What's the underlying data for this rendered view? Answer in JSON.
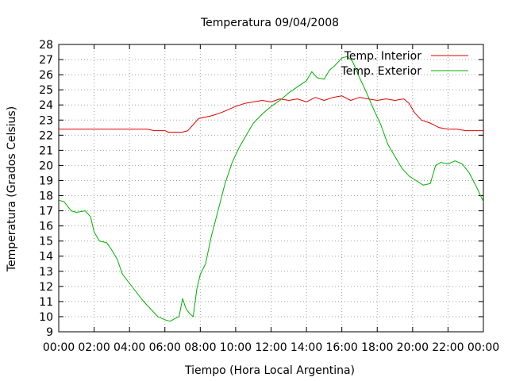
{
  "chart_data": {
    "type": "line",
    "title": "Temperatura 09/04/2008",
    "xlabel": "Tiempo (Hora Local Argentina)",
    "ylabel": "Temperatura (Grados Celsius)",
    "xlim": [
      0,
      24
    ],
    "ylim": [
      9,
      28
    ],
    "grid": true,
    "legend_position": "top-right",
    "x_tick_labels": [
      "00:00",
      "02:00",
      "04:00",
      "06:00",
      "08:00",
      "10:00",
      "12:00",
      "14:00",
      "16:00",
      "18:00",
      "20:00",
      "22:00",
      "00:00"
    ],
    "y_tick_labels": [
      "9",
      "10",
      "11",
      "12",
      "13",
      "14",
      "15",
      "16",
      "17",
      "18",
      "19",
      "20",
      "21",
      "22",
      "23",
      "24",
      "25",
      "26",
      "27",
      "28"
    ],
    "series": [
      {
        "name": "Temp. Interior",
        "color": "#e00000",
        "points": [
          [
            0,
            22.4
          ],
          [
            1,
            22.4
          ],
          [
            2,
            22.4
          ],
          [
            3,
            22.4
          ],
          [
            4,
            22.4
          ],
          [
            5,
            22.4
          ],
          [
            5.4,
            22.3
          ],
          [
            6,
            22.3
          ],
          [
            6.2,
            22.2
          ],
          [
            7,
            22.2
          ],
          [
            7.3,
            22.3
          ],
          [
            7.6,
            22.7
          ],
          [
            7.9,
            23.1
          ],
          [
            8.3,
            23.2
          ],
          [
            8.7,
            23.3
          ],
          [
            9.2,
            23.5
          ],
          [
            9.6,
            23.7
          ],
          [
            10,
            23.9
          ],
          [
            10.5,
            24.1
          ],
          [
            11,
            24.2
          ],
          [
            11.5,
            24.3
          ],
          [
            12,
            24.2
          ],
          [
            12.5,
            24.4
          ],
          [
            13,
            24.3
          ],
          [
            13.5,
            24.4
          ],
          [
            14,
            24.2
          ],
          [
            14.5,
            24.5
          ],
          [
            15,
            24.3
          ],
          [
            15.5,
            24.5
          ],
          [
            16,
            24.6
          ],
          [
            16.5,
            24.3
          ],
          [
            17,
            24.5
          ],
          [
            17.5,
            24.4
          ],
          [
            18,
            24.3
          ],
          [
            18.5,
            24.4
          ],
          [
            19,
            24.3
          ],
          [
            19.5,
            24.4
          ],
          [
            19.8,
            24.1
          ],
          [
            20.1,
            23.5
          ],
          [
            20.5,
            23.0
          ],
          [
            21,
            22.8
          ],
          [
            21.5,
            22.5
          ],
          [
            22,
            22.4
          ],
          [
            22.5,
            22.4
          ],
          [
            23,
            22.3
          ],
          [
            23.5,
            22.3
          ],
          [
            24,
            22.3
          ]
        ]
      },
      {
        "name": "Temp. Exterior",
        "color": "#00b000",
        "points": [
          [
            0,
            17.7
          ],
          [
            0.3,
            17.6
          ],
          [
            0.7,
            17.0
          ],
          [
            1.0,
            16.9
          ],
          [
            1.5,
            17.0
          ],
          [
            1.8,
            16.6
          ],
          [
            2.0,
            15.6
          ],
          [
            2.3,
            15.0
          ],
          [
            2.7,
            14.9
          ],
          [
            3.0,
            14.4
          ],
          [
            3.3,
            13.8
          ],
          [
            3.6,
            12.8
          ],
          [
            4.0,
            12.2
          ],
          [
            4.4,
            11.6
          ],
          [
            4.8,
            11.0
          ],
          [
            5.2,
            10.5
          ],
          [
            5.6,
            10.0
          ],
          [
            6.0,
            9.8
          ],
          [
            6.3,
            9.7
          ],
          [
            6.6,
            9.9
          ],
          [
            6.8,
            10.0
          ],
          [
            7.0,
            11.2
          ],
          [
            7.2,
            10.5
          ],
          [
            7.4,
            10.2
          ],
          [
            7.6,
            10.0
          ],
          [
            7.8,
            11.8
          ],
          [
            8.0,
            12.8
          ],
          [
            8.3,
            13.5
          ],
          [
            8.6,
            15.2
          ],
          [
            9.0,
            17.0
          ],
          [
            9.4,
            18.8
          ],
          [
            9.8,
            20.2
          ],
          [
            10.2,
            21.2
          ],
          [
            10.6,
            22.0
          ],
          [
            11.0,
            22.8
          ],
          [
            11.5,
            23.4
          ],
          [
            12.0,
            23.9
          ],
          [
            12.5,
            24.3
          ],
          [
            13.0,
            24.8
          ],
          [
            13.5,
            25.2
          ],
          [
            14.0,
            25.6
          ],
          [
            14.3,
            26.2
          ],
          [
            14.6,
            25.8
          ],
          [
            15.0,
            25.7
          ],
          [
            15.3,
            26.3
          ],
          [
            15.6,
            26.6
          ],
          [
            16.0,
            27.1
          ],
          [
            16.3,
            27.2
          ],
          [
            16.6,
            26.9
          ],
          [
            17.0,
            25.8
          ],
          [
            17.4,
            24.8
          ],
          [
            17.8,
            23.7
          ],
          [
            18.2,
            22.7
          ],
          [
            18.6,
            21.4
          ],
          [
            19.0,
            20.6
          ],
          [
            19.4,
            19.8
          ],
          [
            19.8,
            19.3
          ],
          [
            20.2,
            19.0
          ],
          [
            20.6,
            18.7
          ],
          [
            21.0,
            18.8
          ],
          [
            21.3,
            20.0
          ],
          [
            21.6,
            20.2
          ],
          [
            22.0,
            20.1
          ],
          [
            22.4,
            20.3
          ],
          [
            22.8,
            20.1
          ],
          [
            23.2,
            19.5
          ],
          [
            23.6,
            18.6
          ],
          [
            24.0,
            17.6
          ]
        ]
      }
    ]
  }
}
